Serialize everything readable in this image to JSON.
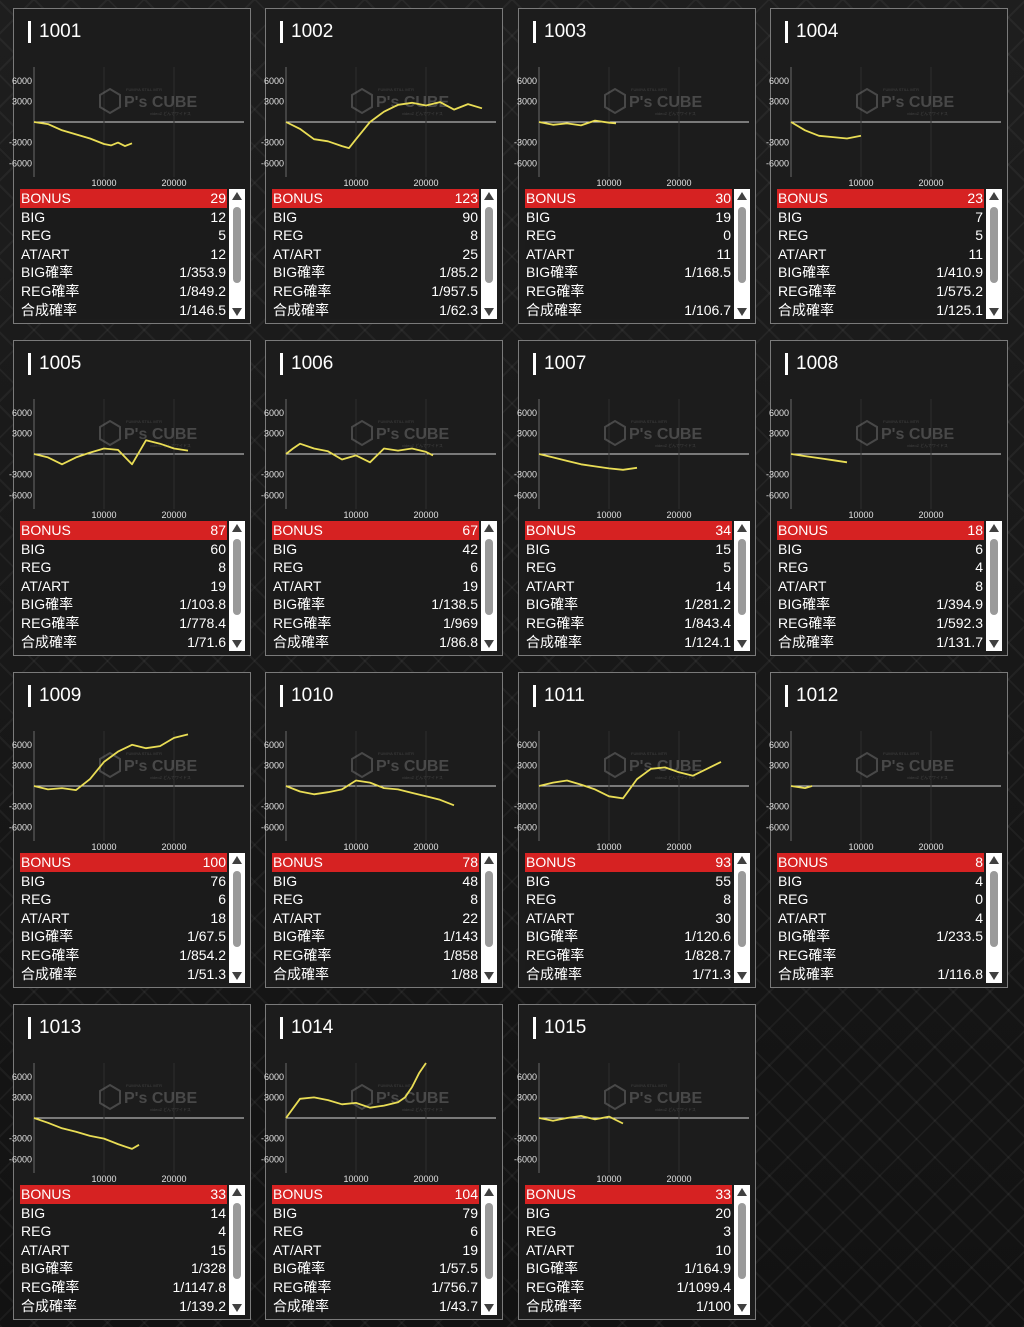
{
  "labels": {
    "bonus": "BONUS",
    "big": "BIG",
    "reg": "REG",
    "at": "AT/ART",
    "big_rate": "BIG確率",
    "reg_rate": "REG確率",
    "total_rate": "合成確率"
  },
  "watermark": {
    "brand": "P's CUBE",
    "small_top": "FUMIYA STILL MTR",
    "small_bottom": "videoZ どんでワイドス"
  },
  "colors": {
    "line": "#e9dd55",
    "bonus_bg": "#d62222",
    "axis": "#cfcfcf"
  },
  "machines": [
    {
      "id": "1001",
      "bonus": "29",
      "big": "12",
      "reg": "5",
      "at": "12",
      "big_rate": "1/353.9",
      "reg_rate": "1/849.2",
      "total_rate": "1/146.5"
    },
    {
      "id": "1002",
      "bonus": "123",
      "big": "90",
      "reg": "8",
      "at": "25",
      "big_rate": "1/85.2",
      "reg_rate": "1/957.5",
      "total_rate": "1/62.3"
    },
    {
      "id": "1003",
      "bonus": "30",
      "big": "19",
      "reg": "0",
      "at": "11",
      "big_rate": "1/168.5",
      "reg_rate": "",
      "total_rate": "1/106.7"
    },
    {
      "id": "1004",
      "bonus": "23",
      "big": "7",
      "reg": "5",
      "at": "11",
      "big_rate": "1/410.9",
      "reg_rate": "1/575.2",
      "total_rate": "1/125.1"
    },
    {
      "id": "1005",
      "bonus": "87",
      "big": "60",
      "reg": "8",
      "at": "19",
      "big_rate": "1/103.8",
      "reg_rate": "1/778.4",
      "total_rate": "1/71.6"
    },
    {
      "id": "1006",
      "bonus": "67",
      "big": "42",
      "reg": "6",
      "at": "19",
      "big_rate": "1/138.5",
      "reg_rate": "1/969",
      "total_rate": "1/86.8"
    },
    {
      "id": "1007",
      "bonus": "34",
      "big": "15",
      "reg": "5",
      "at": "14",
      "big_rate": "1/281.2",
      "reg_rate": "1/843.4",
      "total_rate": "1/124.1"
    },
    {
      "id": "1008",
      "bonus": "18",
      "big": "6",
      "reg": "4",
      "at": "8",
      "big_rate": "1/394.9",
      "reg_rate": "1/592.3",
      "total_rate": "1/131.7"
    },
    {
      "id": "1009",
      "bonus": "100",
      "big": "76",
      "reg": "6",
      "at": "18",
      "big_rate": "1/67.5",
      "reg_rate": "1/854.2",
      "total_rate": "1/51.3"
    },
    {
      "id": "1010",
      "bonus": "78",
      "big": "48",
      "reg": "8",
      "at": "22",
      "big_rate": "1/143",
      "reg_rate": "1/858",
      "total_rate": "1/88"
    },
    {
      "id": "1011",
      "bonus": "93",
      "big": "55",
      "reg": "8",
      "at": "30",
      "big_rate": "1/120.6",
      "reg_rate": "1/828.7",
      "total_rate": "1/71.3"
    },
    {
      "id": "1012",
      "bonus": "8",
      "big": "4",
      "reg": "0",
      "at": "4",
      "big_rate": "1/233.5",
      "reg_rate": "",
      "total_rate": "1/116.8"
    },
    {
      "id": "1013",
      "bonus": "33",
      "big": "14",
      "reg": "4",
      "at": "15",
      "big_rate": "1/328",
      "reg_rate": "1/1147.8",
      "total_rate": "1/139.2"
    },
    {
      "id": "1014",
      "bonus": "104",
      "big": "79",
      "reg": "6",
      "at": "19",
      "big_rate": "1/57.5",
      "reg_rate": "1/756.7",
      "total_rate": "1/43.7"
    },
    {
      "id": "1015",
      "bonus": "33",
      "big": "20",
      "reg": "3",
      "at": "10",
      "big_rate": "1/164.9",
      "reg_rate": "1/1099.4",
      "total_rate": "1/100"
    }
  ],
  "chart_data": [
    {
      "type": "line",
      "title": "1001",
      "yticks": [
        "6000",
        "3000",
        "-3000",
        "-6000"
      ],
      "xticks": [
        "10000",
        "20000"
      ],
      "ylim": [
        -8000,
        8000
      ],
      "xlim": [
        0,
        30000
      ],
      "x": [
        0,
        2000,
        4000,
        6000,
        8000,
        10000,
        11000,
        12000,
        13000,
        14000
      ],
      "y": [
        0,
        -300,
        -1200,
        -1800,
        -2400,
        -3200,
        -3400,
        -3000,
        -3500,
        -3100
      ]
    },
    {
      "type": "line",
      "title": "1002",
      "yticks": [
        "6000",
        "3000",
        "-3000",
        "-6000"
      ],
      "xticks": [
        "10000",
        "20000"
      ],
      "ylim": [
        -8000,
        8000
      ],
      "xlim": [
        0,
        30000
      ],
      "x": [
        0,
        2000,
        4000,
        6000,
        8000,
        9000,
        10000,
        12000,
        14000,
        16000,
        18000,
        20000,
        22000,
        24000,
        26000,
        28000
      ],
      "y": [
        0,
        -1000,
        -2500,
        -2800,
        -3500,
        -3800,
        -2500,
        0,
        1500,
        2500,
        2800,
        2400,
        2900,
        1800,
        2600,
        2000
      ]
    },
    {
      "type": "line",
      "title": "1003",
      "yticks": [
        "6000",
        "3000",
        "-3000",
        "-6000"
      ],
      "xticks": [
        "10000",
        "20000"
      ],
      "ylim": [
        -8000,
        8000
      ],
      "xlim": [
        0,
        30000
      ],
      "x": [
        0,
        2000,
        4000,
        6000,
        8000,
        10000,
        11000
      ],
      "y": [
        0,
        -400,
        -200,
        -500,
        200,
        -100,
        -200
      ]
    },
    {
      "type": "line",
      "title": "1004",
      "yticks": [
        "6000",
        "3000",
        "-3000",
        "-6000"
      ],
      "xticks": [
        "10000",
        "20000"
      ],
      "ylim": [
        -8000,
        8000
      ],
      "xlim": [
        0,
        30000
      ],
      "x": [
        0,
        2000,
        4000,
        6000,
        8000,
        10000
      ],
      "y": [
        0,
        -1200,
        -2000,
        -2200,
        -2400,
        -2000
      ]
    },
    {
      "type": "line",
      "title": "1005",
      "yticks": [
        "6000",
        "3000",
        "-3000",
        "-6000"
      ],
      "xticks": [
        "10000",
        "20000"
      ],
      "ylim": [
        -8000,
        8000
      ],
      "xlim": [
        0,
        30000
      ],
      "x": [
        0,
        2000,
        4000,
        6000,
        8000,
        10000,
        12000,
        14000,
        16000,
        18000,
        20000,
        22000
      ],
      "y": [
        0,
        -500,
        -1500,
        -500,
        200,
        800,
        600,
        -1500,
        2000,
        1500,
        800,
        500
      ]
    },
    {
      "type": "line",
      "title": "1006",
      "yticks": [
        "6000",
        "3000",
        "-3000",
        "-6000"
      ],
      "xticks": [
        "10000",
        "20000"
      ],
      "ylim": [
        -8000,
        8000
      ],
      "xlim": [
        0,
        30000
      ],
      "x": [
        0,
        1000,
        2000,
        4000,
        6000,
        8000,
        10000,
        12000,
        14000,
        16000,
        18000,
        20000,
        21000
      ],
      "y": [
        0,
        800,
        1500,
        800,
        400,
        -800,
        -200,
        -1200,
        800,
        500,
        800,
        300,
        -200
      ]
    },
    {
      "type": "line",
      "title": "1007",
      "yticks": [
        "6000",
        "3000",
        "-3000",
        "-6000"
      ],
      "xticks": [
        "10000",
        "20000"
      ],
      "ylim": [
        -8000,
        8000
      ],
      "xlim": [
        0,
        30000
      ],
      "x": [
        0,
        2000,
        4000,
        6000,
        8000,
        10000,
        12000,
        14000
      ],
      "y": [
        0,
        -500,
        -1000,
        -1500,
        -1800,
        -2100,
        -2300,
        -2000
      ]
    },
    {
      "type": "line",
      "title": "1008",
      "yticks": [
        "6000",
        "3000",
        "-3000",
        "-6000"
      ],
      "xticks": [
        "10000",
        "20000"
      ],
      "ylim": [
        -8000,
        8000
      ],
      "xlim": [
        0,
        30000
      ],
      "x": [
        0,
        2000,
        4000,
        6000,
        8000
      ],
      "y": [
        0,
        -300,
        -600,
        -900,
        -1200
      ]
    },
    {
      "type": "line",
      "title": "1009",
      "yticks": [
        "6000",
        "3000",
        "-3000",
        "-6000"
      ],
      "xticks": [
        "10000",
        "20000"
      ],
      "ylim": [
        -8000,
        8000
      ],
      "xlim": [
        0,
        30000
      ],
      "x": [
        0,
        2000,
        4000,
        6000,
        8000,
        10000,
        12000,
        14000,
        16000,
        18000,
        20000,
        22000
      ],
      "y": [
        0,
        -500,
        -300,
        -600,
        1000,
        3500,
        5000,
        6000,
        5500,
        5800,
        7000,
        7500
      ]
    },
    {
      "type": "line",
      "title": "1010",
      "yticks": [
        "6000",
        "3000",
        "-3000",
        "-6000"
      ],
      "xticks": [
        "10000",
        "20000"
      ],
      "ylim": [
        -8000,
        8000
      ],
      "xlim": [
        0,
        30000
      ],
      "x": [
        0,
        2000,
        4000,
        6000,
        8000,
        10000,
        12000,
        14000,
        16000,
        18000,
        20000,
        22000,
        24000
      ],
      "y": [
        0,
        -800,
        -1200,
        -900,
        -500,
        800,
        500,
        -300,
        -500,
        -1000,
        -1500,
        -2000,
        -2800
      ]
    },
    {
      "type": "line",
      "title": "1011",
      "yticks": [
        "6000",
        "3000",
        "-3000",
        "-6000"
      ],
      "xticks": [
        "10000",
        "20000"
      ],
      "ylim": [
        -8000,
        8000
      ],
      "xlim": [
        0,
        30000
      ],
      "x": [
        0,
        2000,
        4000,
        6000,
        8000,
        10000,
        12000,
        14000,
        16000,
        18000,
        20000,
        22000,
        24000,
        26000
      ],
      "y": [
        0,
        500,
        800,
        200,
        -500,
        -1500,
        -1800,
        1000,
        2500,
        2700,
        2000,
        1500,
        2500,
        3500
      ]
    },
    {
      "type": "line",
      "title": "1012",
      "yticks": [
        "6000",
        "3000",
        "-3000",
        "-6000"
      ],
      "xticks": [
        "10000",
        "20000"
      ],
      "ylim": [
        -8000,
        8000
      ],
      "xlim": [
        0,
        30000
      ],
      "x": [
        0,
        2000,
        3000
      ],
      "y": [
        0,
        -300,
        0
      ]
    },
    {
      "type": "line",
      "title": "1013",
      "yticks": [
        "6000",
        "3000",
        "-3000",
        "-6000"
      ],
      "xticks": [
        "10000",
        "20000"
      ],
      "ylim": [
        -8000,
        8000
      ],
      "xlim": [
        0,
        30000
      ],
      "x": [
        0,
        2000,
        4000,
        6000,
        8000,
        10000,
        12000,
        14000,
        15000
      ],
      "y": [
        0,
        -700,
        -1500,
        -2000,
        -2600,
        -3000,
        -3800,
        -4500,
        -3900
      ]
    },
    {
      "type": "line",
      "title": "1014",
      "yticks": [
        "6000",
        "3000",
        "-3000",
        "-6000"
      ],
      "xticks": [
        "10000",
        "20000"
      ],
      "ylim": [
        -8000,
        8000
      ],
      "xlim": [
        0,
        30000
      ],
      "x": [
        0,
        2000,
        4000,
        6000,
        8000,
        10000,
        12000,
        14000,
        16000,
        17000,
        18000,
        19000,
        20000
      ],
      "y": [
        0,
        2800,
        3000,
        2600,
        2000,
        2200,
        1500,
        1800,
        2300,
        3000,
        4500,
        6500,
        8000
      ]
    },
    {
      "type": "line",
      "title": "1015",
      "yticks": [
        "6000",
        "3000",
        "-3000",
        "-6000"
      ],
      "xticks": [
        "10000",
        "20000"
      ],
      "ylim": [
        -8000,
        8000
      ],
      "xlim": [
        0,
        30000
      ],
      "x": [
        0,
        2000,
        4000,
        6000,
        8000,
        10000,
        12000
      ],
      "y": [
        0,
        -400,
        0,
        300,
        -200,
        200,
        -800
      ]
    }
  ]
}
